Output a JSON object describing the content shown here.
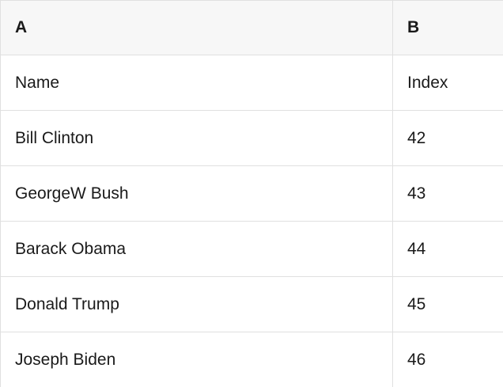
{
  "table": {
    "type": "table",
    "column_headers": [
      "A",
      "B"
    ],
    "rows": [
      [
        "Name",
        "Index"
      ],
      [
        "Bill Clinton",
        "42"
      ],
      [
        "GeorgeW Bush",
        "43"
      ],
      [
        "Barack Obama",
        "44"
      ],
      [
        "Donald Trump",
        "45"
      ],
      [
        "Joseph Biden",
        "46"
      ]
    ],
    "colors": {
      "header_bg": "#f7f7f7",
      "row_bg": "#ffffff",
      "border": "#e0e0e0",
      "text": "#1a1a1a"
    }
  }
}
